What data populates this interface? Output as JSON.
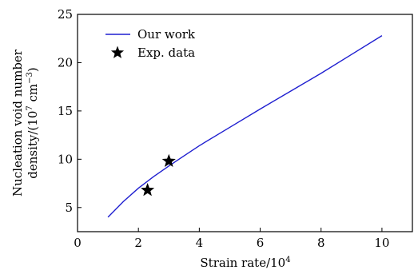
{
  "chart_data": {
    "type": "line",
    "xlabel": "Strain rate/10",
    "xlabel_sup": "4",
    "ylabel_line1": "Nucleation void number",
    "ylabel_line2_prefix": "density/(10",
    "ylabel_line2_sup1": "7",
    "ylabel_line2_mid": " cm",
    "ylabel_line2_sup2": "−3",
    "ylabel_line2_suffix": ")",
    "xlim": [
      0,
      11
    ],
    "ylim": [
      2.5,
      25
    ],
    "xticks": [
      0,
      2,
      4,
      6,
      8,
      10
    ],
    "yticks": [
      5,
      10,
      15,
      20,
      25
    ],
    "xtick_labels": [
      "0",
      "2",
      "4",
      "6",
      "8",
      "10"
    ],
    "ytick_labels": [
      "5",
      "10",
      "15",
      "20",
      "25"
    ],
    "legend_position": "top-left",
    "grid": false,
    "series": [
      {
        "name": "Our work",
        "kind": "line",
        "color": "#1f1fd0",
        "x": [
          1.0,
          1.5,
          2.0,
          2.5,
          3.0,
          3.5,
          4.0,
          5.0,
          6.0,
          7.0,
          8.0,
          9.0,
          10.0
        ],
        "y": [
          4.0,
          5.6,
          7.0,
          8.2,
          9.3,
          10.35,
          11.4,
          13.3,
          15.2,
          17.05,
          18.9,
          20.85,
          22.8
        ]
      },
      {
        "name": "Exp. data",
        "kind": "scatter",
        "marker": "star",
        "color": "#000000",
        "x": [
          2.3,
          3.0
        ],
        "y": [
          6.8,
          9.8
        ]
      }
    ]
  }
}
